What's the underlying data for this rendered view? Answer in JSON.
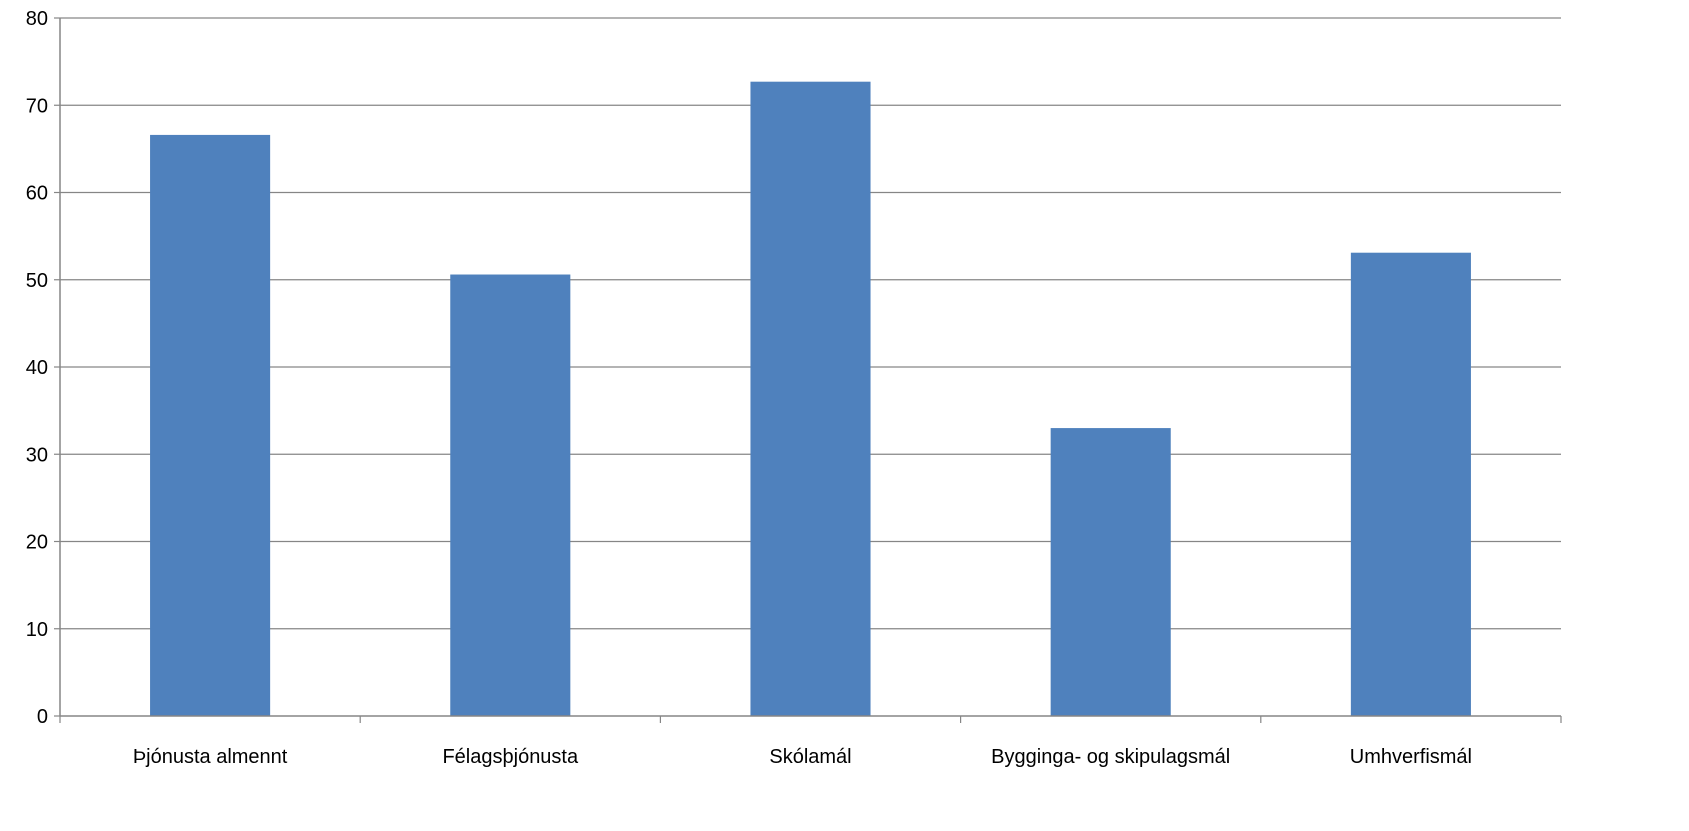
{
  "chart_data": {
    "type": "bar",
    "title": "",
    "xlabel": "",
    "ylabel": "",
    "categories": [
      "Þjónusta almennt",
      "Félagsþjónusta",
      "Skólamál",
      "Bygginga- og skipulagsmál",
      "Umhverfismál"
    ],
    "values": [
      66.6,
      50.6,
      72.7,
      33.0,
      53.1
    ],
    "ylim": [
      0,
      80
    ],
    "yticks": [
      0,
      10,
      20,
      30,
      40,
      50,
      60,
      70,
      80
    ],
    "grid": true,
    "legend": "none",
    "bar_color": "#4F81BD",
    "grid_color": "#868686"
  }
}
